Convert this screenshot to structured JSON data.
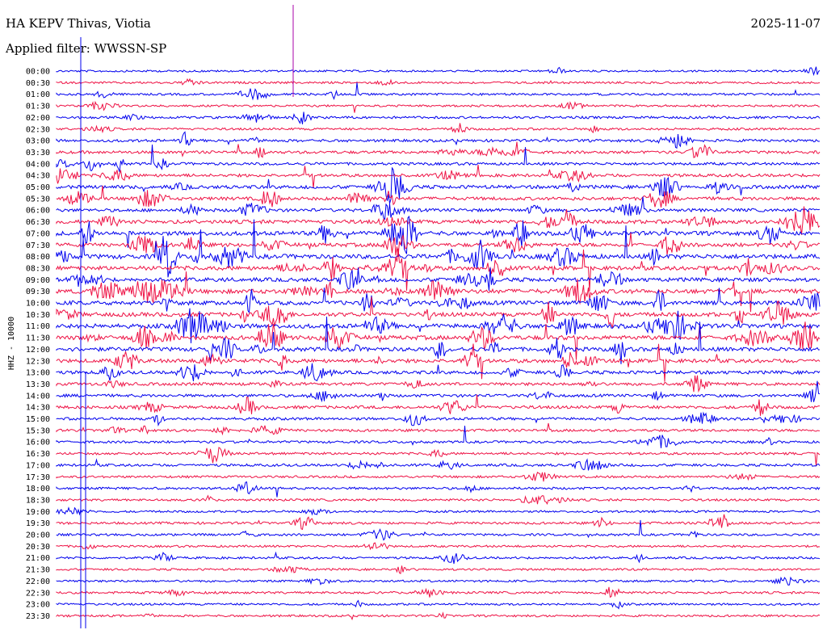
{
  "header": {
    "station": "HA KEPV Thivas, Viotia",
    "filter": "Applied filter: WWSSN-SP",
    "date": "2025-11-07"
  },
  "chart_data": {
    "type": "line",
    "ylabel": "HHZ - 10000",
    "row_labels": [
      "00:00",
      "00:30",
      "01:00",
      "01:30",
      "02:00",
      "02:30",
      "03:00",
      "03:30",
      "04:00",
      "04:30",
      "05:00",
      "05:30",
      "06:00",
      "06:30",
      "07:00",
      "07:30",
      "08:00",
      "08:30",
      "09:00",
      "09:30",
      "10:00",
      "10:30",
      "11:00",
      "11:30",
      "12:00",
      "12:30",
      "13:00",
      "13:30",
      "14:00",
      "14:30",
      "15:00",
      "15:30",
      "16:00",
      "16:30",
      "17:00",
      "17:30",
      "18:00",
      "18:30",
      "19:00",
      "19:30",
      "20:00",
      "20:30",
      "21:00",
      "21:30",
      "22:00",
      "22:30",
      "23:00",
      "23:30"
    ],
    "trace_colors": [
      "#0000ee",
      "#ee1144"
    ],
    "marker_color": "#aa00aa",
    "row_activity": [
      0.3,
      0.4,
      0.5,
      0.4,
      0.6,
      0.5,
      0.8,
      0.9,
      0.8,
      1.0,
      1.3,
      1.2,
      1.1,
      1.5,
      1.8,
      1.5,
      2.0,
      1.7,
      1.6,
      1.9,
      1.8,
      1.7,
      1.9,
      1.8,
      1.7,
      1.5,
      1.2,
      1.0,
      0.9,
      1.0,
      0.8,
      0.7,
      0.6,
      0.6,
      0.7,
      0.5,
      0.6,
      0.5,
      0.4,
      0.6,
      0.5,
      0.4,
      0.5,
      0.4,
      0.4,
      0.5,
      0.4,
      0.4
    ]
  }
}
